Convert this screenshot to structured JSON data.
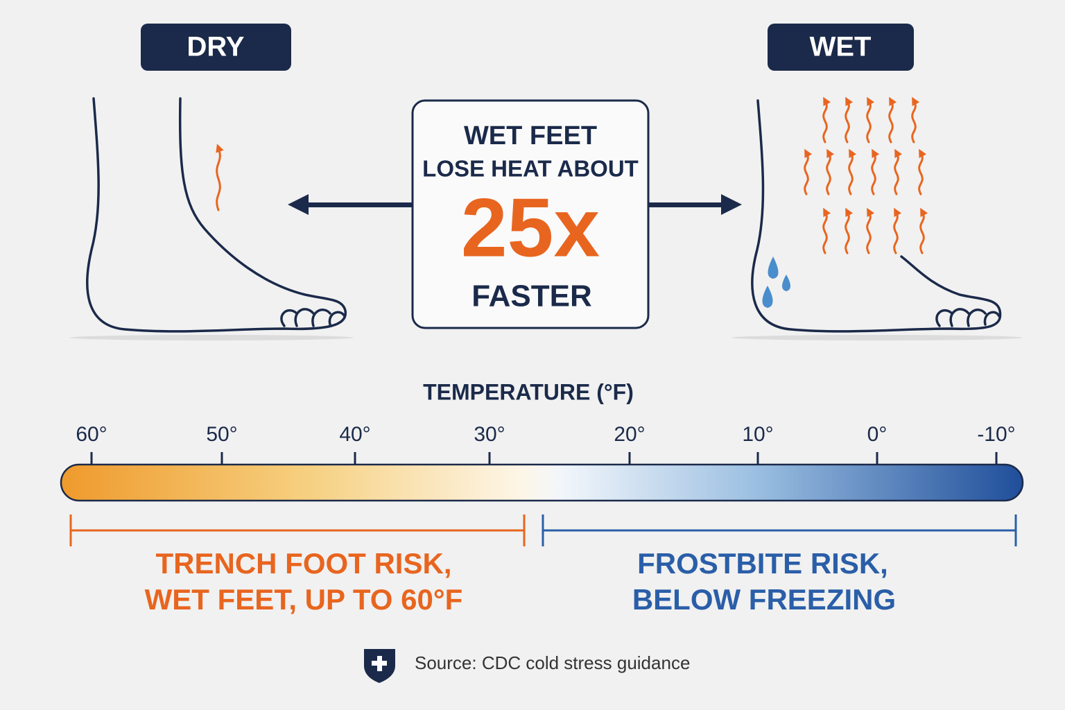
{
  "panels": [
    {
      "label": "DRY"
    },
    {
      "label": "WET"
    }
  ],
  "callout": {
    "lines": [
      "WET FEET",
      "LOSE HEAT ABOUT",
      "25x",
      "FASTER"
    ]
  },
  "scale": {
    "title": "TEMPERATURE (°F)",
    "ticks": [
      "60°",
      "50°",
      "40°",
      "30°",
      "20°",
      "10°",
      "0°",
      "-10°"
    ]
  },
  "ranges": [
    {
      "lines": [
        "TRENCH FOOT RISK,",
        "WET FEET, UP TO 60°F"
      ]
    },
    {
      "lines": [
        "FROSTBITE RISK,",
        "BELOW FREEZING"
      ]
    }
  ],
  "footer": {
    "source": "Source: CDC cold stress guidance"
  }
}
